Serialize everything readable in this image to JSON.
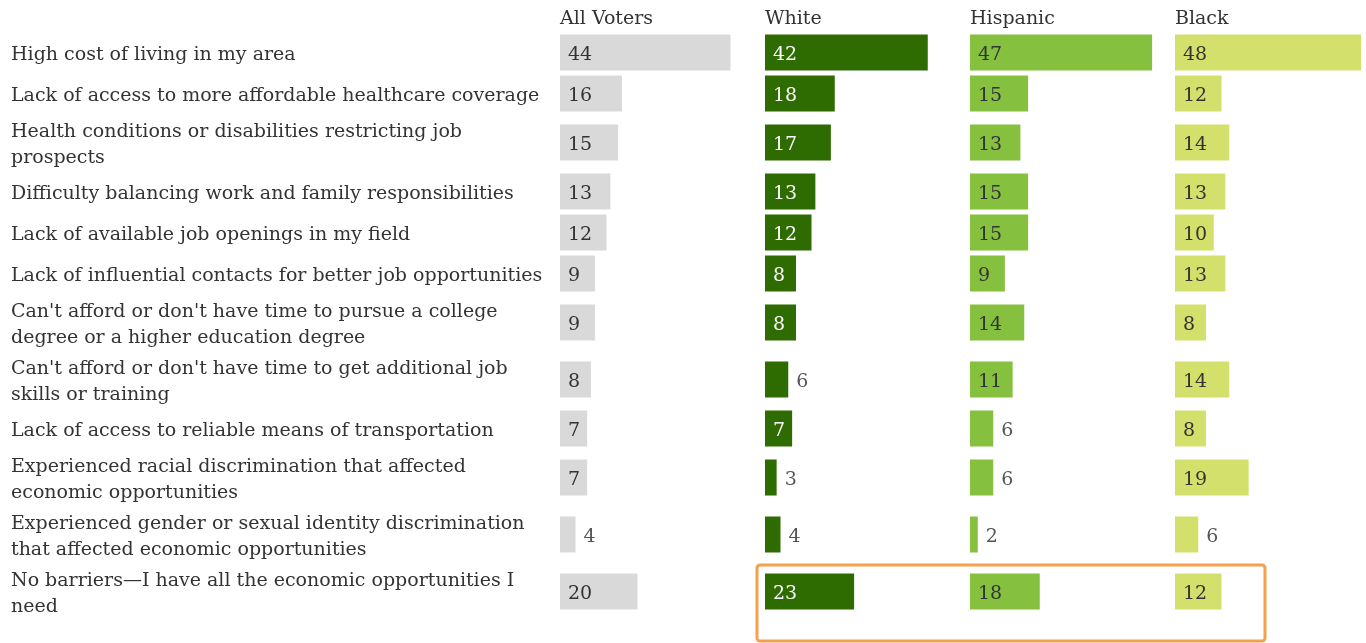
{
  "chart_data": [
    {
      "type": "bar",
      "orientation": "horizontal",
      "title": "All Voters",
      "data_labels": true,
      "color": "#d9d9d9",
      "categories": [
        "High cost of living in my area",
        "Lack of access to more affordable healthcare coverage",
        "Health conditions or disabilities restricting job prospects",
        "Difficulty balancing work and family responsibilities",
        "Lack of available job openings in my field",
        "Lack of influential contacts for better job opportunities",
        "Can't afford or don't have time to pursue a college degree or a higher education degree",
        "Can't afford or don't have time to get additional job skills or training",
        "Lack of access to reliable means of transportation",
        "Experienced racial discrimination that affected economic opportunities",
        "Experienced gender or sexual identity discrimination that affected economic opportunities",
        "No barriers—I have all the economic opportunities I need"
      ],
      "values": [
        44,
        16,
        15,
        13,
        12,
        9,
        9,
        8,
        7,
        7,
        4,
        20
      ]
    },
    {
      "type": "bar",
      "orientation": "horizontal",
      "title": "White",
      "data_labels": true,
      "color": "#2e6b00",
      "tick_labels": false,
      "categories": [
        "High cost of living in my area",
        "Lack of access to more affordable healthcare coverage",
        "Health conditions or disabilities restricting job prospects",
        "Difficulty balancing work and family responsibilities",
        "Lack of available job openings in my field",
        "Lack of influential contacts for better job opportunities",
        "Can't afford or don't have time to pursue a college degree or a higher education degree",
        "Can't afford or don't have time to get additional job skills or training",
        "Lack of access to reliable means of transportation",
        "Experienced racial discrimination that affected economic opportunities",
        "Experienced gender or sexual identity discrimination that affected economic opportunities",
        "No barriers—I have all the economic opportunities I need"
      ],
      "values": [
        42,
        18,
        17,
        13,
        12,
        8,
        8,
        6,
        7,
        3,
        4,
        23
      ]
    },
    {
      "type": "bar",
      "orientation": "horizontal",
      "title": "Hispanic",
      "data_labels": true,
      "color": "#86c03f",
      "tick_labels": false,
      "categories": [
        "High cost of living in my area",
        "Lack of access to more affordable healthcare coverage",
        "Health conditions or disabilities restricting job prospects",
        "Difficulty balancing work and family responsibilities",
        "Lack of available job openings in my field",
        "Lack of influential contacts for better job opportunities",
        "Can't afford or don't have time to pursue a college degree or a higher education degree",
        "Can't afford or don't have time to get additional job skills or training",
        "Lack of access to reliable means of transportation",
        "Experienced racial discrimination that affected economic opportunities",
        "Experienced gender or sexual identity discrimination that affected economic opportunities",
        "No barriers—I have all the economic opportunities I need"
      ],
      "values": [
        47,
        15,
        13,
        15,
        15,
        9,
        14,
        11,
        6,
        6,
        2,
        18
      ]
    },
    {
      "type": "bar",
      "orientation": "horizontal",
      "title": "Black",
      "data_labels": true,
      "color": "#d4e06c",
      "tick_labels": false,
      "categories": [
        "High cost of living in my area",
        "Lack of access to more affordable healthcare coverage",
        "Health conditions or disabilities restricting job prospects",
        "Difficulty balancing work and family responsibilities",
        "Lack of available job openings in my field",
        "Lack of influential contacts for better job opportunities",
        "Can't afford or don't have time to pursue a college degree or a higher education degree",
        "Can't afford or don't have time to get additional job skills or training",
        "Lack of access to reliable means of transportation",
        "Experienced racial discrimination that affected economic opportunities",
        "Experienced gender or sexual identity discrimination that affected economic opportunities",
        "No barriers—I have all the economic opportunities I need"
      ],
      "values": [
        48,
        12,
        14,
        13,
        10,
        13,
        8,
        14,
        8,
        19,
        6,
        12
      ]
    }
  ]
}
